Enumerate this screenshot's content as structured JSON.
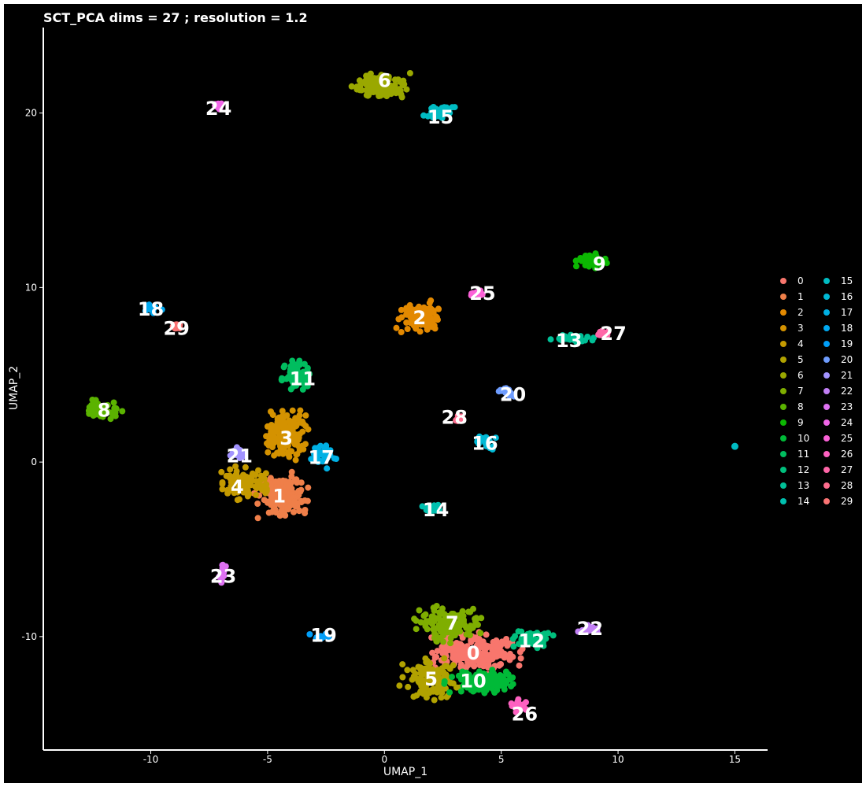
{
  "chart_data": {
    "type": "scatter",
    "title": "SCT_PCA dims =  27 ; resolution = 1.2",
    "xlabel": "UMAP_1",
    "ylabel": "UMAP_2",
    "xlim": [
      -14.6,
      16.4
    ],
    "ylim": [
      -16.5,
      24.9
    ],
    "x_ticks": [
      -10,
      -5,
      0,
      5,
      10,
      15
    ],
    "y_ticks": [
      -10,
      0,
      10,
      20
    ],
    "grid": false,
    "background": "#000000",
    "frame_color": "#ffffff",
    "legend": {
      "placement": "right",
      "columns": 2
    },
    "clusters": [
      {
        "id": "0",
        "color": "#F8766D",
        "x": 3.8,
        "y": -10.9,
        "sx": 1.35,
        "sy": 0.75
      },
      {
        "id": "1",
        "color": "#EF7F49",
        "x": -4.4,
        "y": -1.9,
        "sx": 0.8,
        "sy": 0.9
      },
      {
        "id": "2",
        "color": "#E38900",
        "x": 1.5,
        "y": 8.3,
        "sx": 0.7,
        "sy": 0.7
      },
      {
        "id": "3",
        "color": "#D49200",
        "x": -4.3,
        "y": 1.6,
        "sx": 0.75,
        "sy": 0.95
      },
      {
        "id": "4",
        "color": "#C49A00",
        "x": -6.0,
        "y": -1.2,
        "sx": 0.7,
        "sy": 0.7
      },
      {
        "id": "5",
        "color": "#B1A200",
        "x": 2.0,
        "y": -12.5,
        "sx": 0.8,
        "sy": 0.8
      },
      {
        "id": "6",
        "color": "#9AA800",
        "x": -0.2,
        "y": 21.6,
        "sx": 0.8,
        "sy": 0.6
      },
      {
        "id": "7",
        "color": "#7FAE00",
        "x": 2.8,
        "y": -9.3,
        "sx": 1.0,
        "sy": 0.7
      },
      {
        "id": "8",
        "color": "#5BB300",
        "x": -12.1,
        "y": 3.0,
        "sx": 0.7,
        "sy": 0.35
      },
      {
        "id": "9",
        "color": "#0CB702",
        "x": 8.9,
        "y": 11.5,
        "sx": 0.5,
        "sy": 0.35
      },
      {
        "id": "10",
        "color": "#00BA38",
        "x": 4.2,
        "y": -12.6,
        "sx": 1.0,
        "sy": 0.5
      },
      {
        "id": "11",
        "color": "#00BD5F",
        "x": -3.7,
        "y": 5.0,
        "sx": 0.5,
        "sy": 0.6
      },
      {
        "id": "12",
        "color": "#00BF7D",
        "x": 6.3,
        "y": -10.2,
        "sx": 0.7,
        "sy": 0.35
      },
      {
        "id": "13",
        "color": "#00C097",
        "x": 8.0,
        "y": 7.1,
        "sx": 0.75,
        "sy": 0.15
      },
      {
        "id": "14",
        "color": "#00C0AF",
        "x": 2.0,
        "y": -2.7,
        "sx": 0.35,
        "sy": 0.25
      },
      {
        "id": "15",
        "color": "#00BCC3",
        "x": 2.3,
        "y": 20.0,
        "sx": 0.45,
        "sy": 0.3
      },
      {
        "id": "16",
        "color": "#00B8D5",
        "x": 4.4,
        "y": 1.1,
        "sx": 0.35,
        "sy": 0.35
      },
      {
        "id": "17",
        "color": "#00B0E4",
        "x": -2.6,
        "y": 0.4,
        "sx": 0.35,
        "sy": 0.5
      },
      {
        "id": "18",
        "color": "#00A8F0",
        "x": -10.0,
        "y": 8.8,
        "sx": 0.35,
        "sy": 0.2
      },
      {
        "id": "19",
        "color": "#009EF9",
        "x": -2.7,
        "y": -10.0,
        "sx": 0.3,
        "sy": 0.12
      },
      {
        "id": "20",
        "color": "#6E9CFE",
        "x": 5.2,
        "y": 4.0,
        "sx": 0.3,
        "sy": 0.2
      },
      {
        "id": "21",
        "color": "#A293FF",
        "x": -6.3,
        "y": 0.5,
        "sx": 0.3,
        "sy": 0.3
      },
      {
        "id": "22",
        "color": "#C27FF6",
        "x": 8.8,
        "y": -9.6,
        "sx": 0.35,
        "sy": 0.15
      },
      {
        "id": "23",
        "color": "#DE71F2",
        "x": -6.9,
        "y": -6.3,
        "sx": 0.15,
        "sy": 0.45
      },
      {
        "id": "24",
        "color": "#F166E8",
        "x": -7.1,
        "y": 20.4,
        "sx": 0.12,
        "sy": 0.12
      },
      {
        "id": "25",
        "color": "#FB61D7",
        "x": 4.0,
        "y": 9.7,
        "sx": 0.3,
        "sy": 0.12
      },
      {
        "id": "26",
        "color": "#FE61C1",
        "x": 5.8,
        "y": -14.0,
        "sx": 0.3,
        "sy": 0.3
      },
      {
        "id": "27",
        "color": "#FF66A8",
        "x": 9.4,
        "y": 7.4,
        "sx": 0.25,
        "sy": 0.12
      },
      {
        "id": "28",
        "color": "#FE6D8E",
        "x": 3.2,
        "y": 2.5,
        "sx": 0.12,
        "sy": 0.12
      },
      {
        "id": "29",
        "color": "#FA7373",
        "x": -8.9,
        "y": 7.8,
        "sx": 0.12,
        "sy": 0.12
      }
    ],
    "extra_points": [
      {
        "id": "15",
        "x": 15.0,
        "y": 0.9
      }
    ],
    "cluster_labels": [
      {
        "text": "0",
        "x": 3.8,
        "y": -10.9
      },
      {
        "text": "1",
        "x": -4.5,
        "y": -1.9
      },
      {
        "text": "2",
        "x": 1.5,
        "y": 8.3
      },
      {
        "text": "3",
        "x": -4.2,
        "y": 1.4
      },
      {
        "text": "4",
        "x": -6.3,
        "y": -1.4
      },
      {
        "text": "5",
        "x": 2.0,
        "y": -12.4
      },
      {
        "text": "6",
        "x": 0.0,
        "y": 21.9
      },
      {
        "text": "7",
        "x": 2.9,
        "y": -9.2
      },
      {
        "text": "8",
        "x": -12.0,
        "y": 3.0
      },
      {
        "text": "9",
        "x": 9.2,
        "y": 11.4
      },
      {
        "text": "10",
        "x": 3.8,
        "y": -12.5
      },
      {
        "text": "11",
        "x": -3.5,
        "y": 4.8
      },
      {
        "text": "12",
        "x": 6.3,
        "y": -10.2
      },
      {
        "text": "13",
        "x": 7.9,
        "y": 7.0
      },
      {
        "text": "14",
        "x": 2.2,
        "y": -2.7
      },
      {
        "text": "15",
        "x": 2.4,
        "y": 19.8
      },
      {
        "text": "16",
        "x": 4.3,
        "y": 1.1
      },
      {
        "text": "17",
        "x": -2.7,
        "y": 0.3
      },
      {
        "text": "18",
        "x": -10.0,
        "y": 8.8
      },
      {
        "text": "19",
        "x": -2.6,
        "y": -9.9
      },
      {
        "text": "20",
        "x": 5.5,
        "y": 3.9
      },
      {
        "text": "21",
        "x": -6.2,
        "y": 0.4
      },
      {
        "text": "22",
        "x": 8.8,
        "y": -9.5
      },
      {
        "text": "23",
        "x": -6.9,
        "y": -6.5
      },
      {
        "text": "24",
        "x": -7.1,
        "y": 20.3
      },
      {
        "text": "25",
        "x": 4.2,
        "y": 9.7
      },
      {
        "text": "26",
        "x": 6.0,
        "y": -14.4
      },
      {
        "text": "27",
        "x": 9.8,
        "y": 7.4
      },
      {
        "text": "28",
        "x": 3.0,
        "y": 2.6
      },
      {
        "text": "29",
        "x": -8.9,
        "y": 7.7
      }
    ]
  }
}
